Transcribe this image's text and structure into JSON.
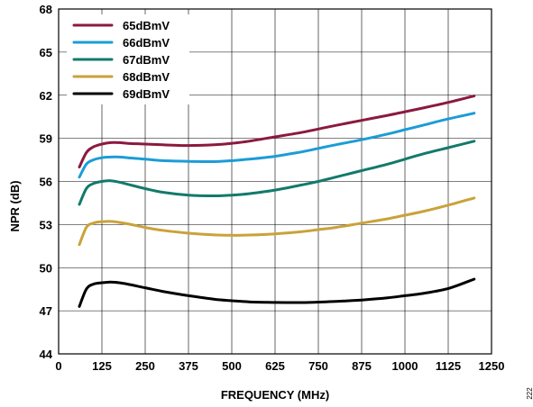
{
  "chart_data": {
    "type": "line",
    "xlabel": "FREQUENCY (MHz)",
    "ylabel": "NPR (dB)",
    "xlim": [
      0,
      1250
    ],
    "ylim": [
      44,
      68
    ],
    "x_ticks": [
      "0",
      "125",
      "250",
      "375",
      "500",
      "625",
      "750",
      "875",
      "1000",
      "1125",
      "1250"
    ],
    "y_ticks": [
      "44",
      "47",
      "50",
      "53",
      "56",
      "59",
      "62",
      "65",
      "68"
    ],
    "grid": true,
    "legend_position": "top-left",
    "series": [
      {
        "name": "65dBmV",
        "color": "#8b1a3d",
        "x": [
          60,
          80,
          100,
          125,
          150,
          175,
          200,
          250,
          300,
          375,
          450,
          500,
          550,
          625,
          700,
          750,
          800,
          875,
          950,
          1000,
          1050,
          1125,
          1200
        ],
        "y": [
          57.0,
          58.0,
          58.4,
          58.6,
          58.7,
          58.7,
          58.65,
          58.6,
          58.55,
          58.5,
          58.55,
          58.65,
          58.8,
          59.1,
          59.4,
          59.65,
          59.9,
          60.25,
          60.6,
          60.85,
          61.1,
          61.5,
          61.95
        ]
      },
      {
        "name": "66dBmV",
        "color": "#1b9dd6",
        "x": [
          60,
          80,
          100,
          125,
          150,
          175,
          200,
          250,
          300,
          375,
          450,
          500,
          550,
          625,
          700,
          750,
          800,
          875,
          950,
          1000,
          1050,
          1125,
          1200
        ],
        "y": [
          56.3,
          57.2,
          57.5,
          57.65,
          57.7,
          57.7,
          57.65,
          57.55,
          57.45,
          57.4,
          57.38,
          57.45,
          57.55,
          57.75,
          58.05,
          58.3,
          58.55,
          58.9,
          59.3,
          59.6,
          59.9,
          60.35,
          60.75
        ]
      },
      {
        "name": "67dBmV",
        "color": "#127a6a",
        "x": [
          60,
          80,
          100,
          125,
          150,
          175,
          200,
          250,
          300,
          375,
          450,
          500,
          550,
          625,
          700,
          750,
          800,
          875,
          950,
          1000,
          1050,
          1125,
          1200
        ],
        "y": [
          54.4,
          55.5,
          55.85,
          56.0,
          56.05,
          55.95,
          55.8,
          55.5,
          55.25,
          55.05,
          55.0,
          55.05,
          55.15,
          55.4,
          55.75,
          56.0,
          56.3,
          56.75,
          57.2,
          57.55,
          57.9,
          58.35,
          58.8
        ]
      },
      {
        "name": "68dBmV",
        "color": "#c9a23a",
        "x": [
          60,
          80,
          100,
          125,
          150,
          175,
          200,
          250,
          300,
          375,
          450,
          500,
          550,
          625,
          700,
          750,
          800,
          875,
          950,
          1000,
          1050,
          1125,
          1200
        ],
        "y": [
          51.6,
          52.8,
          53.1,
          53.2,
          53.22,
          53.15,
          53.05,
          52.8,
          52.6,
          52.4,
          52.28,
          52.25,
          52.27,
          52.35,
          52.5,
          52.65,
          52.8,
          53.1,
          53.4,
          53.65,
          53.9,
          54.35,
          54.85
        ]
      },
      {
        "name": "69dBmV",
        "color": "#000000",
        "x": [
          60,
          80,
          100,
          125,
          150,
          175,
          200,
          250,
          300,
          375,
          450,
          500,
          550,
          625,
          700,
          750,
          800,
          875,
          950,
          1000,
          1050,
          1125,
          1200
        ],
        "y": [
          47.3,
          48.5,
          48.85,
          48.95,
          49.0,
          48.95,
          48.85,
          48.6,
          48.35,
          48.05,
          47.8,
          47.7,
          47.62,
          47.58,
          47.57,
          47.6,
          47.65,
          47.75,
          47.9,
          48.05,
          48.2,
          48.55,
          49.2
        ]
      }
    ]
  },
  "side_note": "222"
}
